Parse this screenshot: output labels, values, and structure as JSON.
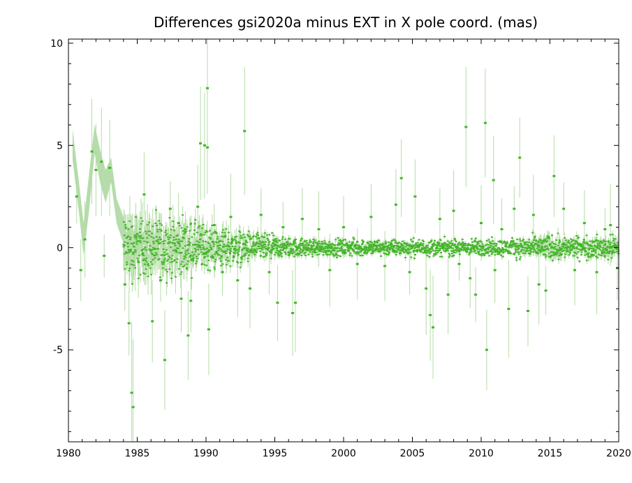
{
  "chart_data": {
    "type": "scatter",
    "title": "Differences gsi2020a minus EXT in X pole coord. (mas)",
    "xlabel": "",
    "ylabel": "",
    "xlim": [
      1980,
      2020
    ],
    "ylim": [
      -9.5,
      10.2
    ],
    "x_ticks": [
      "1980",
      "1985",
      "1990",
      "1995",
      "2000",
      "2005",
      "2010",
      "2015",
      "2020"
    ],
    "y_ticks": [
      "-5",
      "0",
      "5",
      "10"
    ],
    "grid": false,
    "legend": "none",
    "colors": {
      "points": "#44b52a",
      "error_bars": "#b3dca5",
      "band": "#b5dcaa",
      "axes": "#000000"
    },
    "band": [
      [
        1980.3,
        4.3,
        5.8
      ],
      [
        1980.8,
        1.5,
        3.0
      ],
      [
        1981.1,
        -0.4,
        1.2
      ],
      [
        1981.5,
        1.8,
        3.6
      ],
      [
        1981.9,
        4.6,
        6.0
      ],
      [
        1982.3,
        3.2,
        4.8
      ],
      [
        1982.7,
        2.2,
        3.8
      ],
      [
        1983.1,
        3.2,
        4.4
      ],
      [
        1983.5,
        1.2,
        2.4
      ],
      [
        1984.0,
        0.2,
        1.5
      ]
    ],
    "outliers": [
      [
        1980.6,
        2.5
      ],
      [
        1980.9,
        -1.1
      ],
      [
        1981.2,
        0.4
      ],
      [
        1981.7,
        4.7
      ],
      [
        1982.0,
        3.8
      ],
      [
        1982.4,
        4.2
      ],
      [
        1982.6,
        -0.4
      ],
      [
        1983.0,
        3.9
      ],
      [
        1984.1,
        -1.8
      ],
      [
        1984.4,
        -3.7
      ],
      [
        1984.6,
        -7.1
      ],
      [
        1984.7,
        -7.8
      ],
      [
        1985.5,
        2.6
      ],
      [
        1986.1,
        -3.6
      ],
      [
        1986.7,
        -1.6
      ],
      [
        1987.0,
        -5.5
      ],
      [
        1987.4,
        1.9
      ],
      [
        1988.0,
        1.2
      ],
      [
        1988.2,
        -2.5
      ],
      [
        1988.5,
        0.9
      ],
      [
        1988.7,
        -4.3
      ],
      [
        1988.9,
        -2.6
      ],
      [
        1989.4,
        2.0
      ],
      [
        1989.6,
        5.1
      ],
      [
        1989.9,
        5.0
      ],
      [
        1990.1,
        4.9
      ],
      [
        1990.1,
        7.8
      ],
      [
        1990.2,
        -4.0
      ],
      [
        1990.6,
        1.1
      ],
      [
        1991.2,
        -1.2
      ],
      [
        1991.8,
        1.5
      ],
      [
        1992.3,
        -1.6
      ],
      [
        1992.8,
        5.7
      ],
      [
        1993.2,
        -2.0
      ],
      [
        1994.0,
        1.6
      ],
      [
        1994.6,
        -1.2
      ],
      [
        1995.2,
        -2.7
      ],
      [
        1995.6,
        1.0
      ],
      [
        1996.3,
        -3.2
      ],
      [
        1996.5,
        -2.7
      ],
      [
        1997.0,
        1.4
      ],
      [
        1998.2,
        0.9
      ],
      [
        1999.0,
        -1.1
      ],
      [
        2000.0,
        1.0
      ],
      [
        2001.0,
        -0.8
      ],
      [
        2002.0,
        1.5
      ],
      [
        2003.0,
        -0.9
      ],
      [
        2003.8,
        2.1
      ],
      [
        2004.2,
        3.4
      ],
      [
        2004.8,
        -1.2
      ],
      [
        2005.2,
        2.5
      ],
      [
        2006.0,
        -2.0
      ],
      [
        2006.3,
        -3.3
      ],
      [
        2006.5,
        -3.9
      ],
      [
        2007.0,
        1.4
      ],
      [
        2007.6,
        -2.3
      ],
      [
        2008.0,
        1.8
      ],
      [
        2008.4,
        -0.8
      ],
      [
        2008.9,
        5.9
      ],
      [
        2009.2,
        -1.5
      ],
      [
        2009.6,
        -2.3
      ],
      [
        2010.0,
        1.2
      ],
      [
        2010.3,
        6.1
      ],
      [
        2010.4,
        -5.0
      ],
      [
        2010.9,
        3.3
      ],
      [
        2011.0,
        -1.1
      ],
      [
        2011.5,
        0.9
      ],
      [
        2012.0,
        -3.0
      ],
      [
        2012.4,
        1.9
      ],
      [
        2012.8,
        4.4
      ],
      [
        2013.4,
        -3.1
      ],
      [
        2013.8,
        1.6
      ],
      [
        2014.2,
        -1.8
      ],
      [
        2014.7,
        -2.1
      ],
      [
        2015.3,
        3.5
      ],
      [
        2016.0,
        1.9
      ],
      [
        2016.8,
        -1.1
      ],
      [
        2017.5,
        1.2
      ],
      [
        2018.4,
        -1.2
      ],
      [
        2019.0,
        0.9
      ],
      [
        2019.4,
        1.1
      ],
      [
        2019.9,
        -1.0
      ]
    ],
    "density_profile": [
      [
        1984.0,
        1.25,
        0.72
      ],
      [
        1986.0,
        1.05,
        0.56
      ],
      [
        1988.0,
        0.95,
        0.45
      ],
      [
        1990.0,
        0.85,
        0.34
      ],
      [
        1992.0,
        0.65,
        0.24
      ],
      [
        1994.0,
        0.5,
        0.18
      ],
      [
        1996.0,
        0.35,
        0.14
      ],
      [
        1998.0,
        0.3,
        0.12
      ],
      [
        2000.0,
        0.3,
        0.11
      ],
      [
        2003.0,
        0.3,
        0.1
      ],
      [
        2006.0,
        0.3,
        0.08
      ],
      [
        2009.0,
        0.3,
        0.08
      ],
      [
        2012.0,
        0.32,
        0.08
      ],
      [
        2015.0,
        0.45,
        0.2
      ],
      [
        2017.0,
        0.38,
        0.12
      ],
      [
        2020.0,
        0.42,
        0.18
      ]
    ]
  }
}
